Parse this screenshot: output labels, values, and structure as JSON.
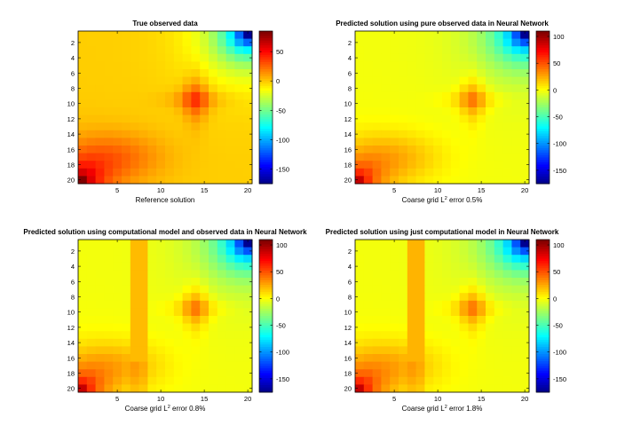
{
  "figure": {
    "background": "#ffffff",
    "axis_color": "#000000"
  },
  "chart_data": [
    {
      "type": "heatmap",
      "title": "True observed data",
      "xlabel": "Reference solution",
      "xlabel_sup": "",
      "xlabel_tail": "",
      "ylabel": "",
      "grid_size": [
        20,
        20
      ],
      "x_ticks": [
        5,
        10,
        15,
        20
      ],
      "y_ticks": [
        2,
        4,
        6,
        8,
        10,
        12,
        14,
        16,
        18,
        20
      ],
      "colorbar_ticks": [
        50,
        0,
        -50,
        -100,
        -150
      ],
      "clim": [
        -175,
        85
      ],
      "colormap": "jet",
      "vertical_stripes": [],
      "stripe_value": 20,
      "values_description": "matrix rows 1-20 x cols 1-20; see script-derived field"
    },
    {
      "type": "heatmap",
      "title": "Predicted solution using pure observed data in Neural Network",
      "xlabel": "Coarse grid L",
      "xlabel_sup": "2",
      "xlabel_tail": " error  0.5%",
      "ylabel": "",
      "grid_size": [
        20,
        20
      ],
      "x_ticks": [
        5,
        10,
        15,
        20
      ],
      "y_ticks": [
        2,
        4,
        6,
        8,
        10,
        12,
        14,
        16,
        18,
        20
      ],
      "colorbar_ticks": [
        100,
        50,
        0,
        -50,
        -100,
        -150
      ],
      "clim": [
        -175,
        110
      ],
      "colormap": "jet",
      "vertical_stripes": [],
      "stripe_value": 20
    },
    {
      "type": "heatmap",
      "title": "Predicted solution using computational model and observed data in Neural Network",
      "xlabel": "Coarse grid L",
      "xlabel_sup": "2",
      "xlabel_tail": " error 0.8%",
      "ylabel": "",
      "grid_size": [
        20,
        20
      ],
      "x_ticks": [
        5,
        10,
        15,
        20
      ],
      "y_ticks": [
        2,
        4,
        6,
        8,
        10,
        12,
        14,
        16,
        18,
        20
      ],
      "colorbar_ticks": [
        100,
        50,
        0,
        -50,
        -100,
        -150
      ],
      "clim": [
        -175,
        110
      ],
      "colormap": "jet",
      "vertical_stripes": [
        7,
        8
      ],
      "stripe_value": 22
    },
    {
      "type": "heatmap",
      "title": "Predicted solution using just computational model in Neural Network",
      "xlabel": "Coarse grid L",
      "xlabel_sup": "2",
      "xlabel_tail": " error 1.8%",
      "ylabel": "",
      "grid_size": [
        20,
        20
      ],
      "x_ticks": [
        5,
        10,
        15,
        20
      ],
      "y_ticks": [
        2,
        4,
        6,
        8,
        10,
        12,
        14,
        16,
        18,
        20
      ],
      "colorbar_ticks": [
        100,
        50,
        0,
        -50,
        -100,
        -150
      ],
      "clim": [
        -175,
        110
      ],
      "colormap": "jet",
      "vertical_stripes": [
        7,
        8
      ],
      "stripe_value": 24
    }
  ]
}
